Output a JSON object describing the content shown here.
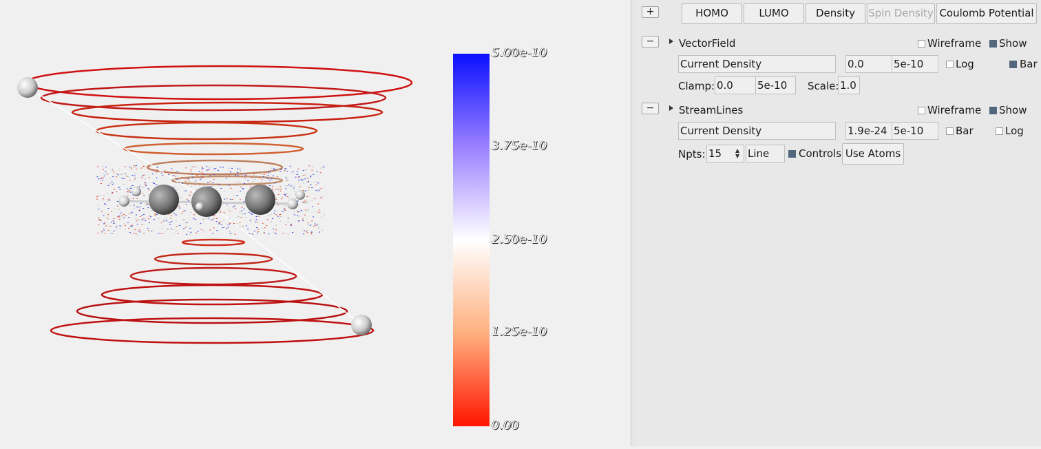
{
  "viewport": {
    "colorbar": {
      "min": 0,
      "max": 5e-10,
      "ticks": [
        "5.00e-10",
        "3.75e-10",
        "2.50e-10",
        "1.25e-10",
        "0.00"
      ],
      "colors": [
        "#0000ff",
        "#ffffff",
        "#ff1a00"
      ]
    }
  },
  "panel": {
    "expand_label": "+",
    "orbital_buttons": [
      {
        "label": "HOMO"
      },
      {
        "label": "LUMO"
      },
      {
        "label": "Density"
      },
      {
        "label": "Spin Density",
        "disabled": true
      },
      {
        "label": "Coulomb Potential"
      }
    ],
    "vectorfield": {
      "collapse_label": "−",
      "title": "VectorField",
      "wireframe_label": "Wireframe",
      "wireframe": false,
      "show_label": "Show",
      "show": true,
      "quantity": "Current Density",
      "min": "0.0",
      "max": "5e-10",
      "log_label": "Log",
      "log": false,
      "bar_label": "Bar",
      "bar": true,
      "clamp_label": "Clamp:",
      "clamp_min": "0.0",
      "clamp_max": "5e-10",
      "scale_label": "Scale:",
      "scale": "1.0"
    },
    "streamlines": {
      "collapse_label": "−",
      "title": "StreamLines",
      "wireframe_label": "Wireframe",
      "wireframe": false,
      "show_label": "Show",
      "show": true,
      "quantity": "Current Density",
      "min": "1.9e-24",
      "max": "5e-10",
      "bar_label": "Bar",
      "bar": false,
      "log_label": "Log",
      "log": false,
      "npts_label": "Npts:",
      "npts": "15",
      "mode": "Line",
      "controls_label": "Controls",
      "controls": true,
      "use_atoms_label": "Use Atoms"
    }
  }
}
